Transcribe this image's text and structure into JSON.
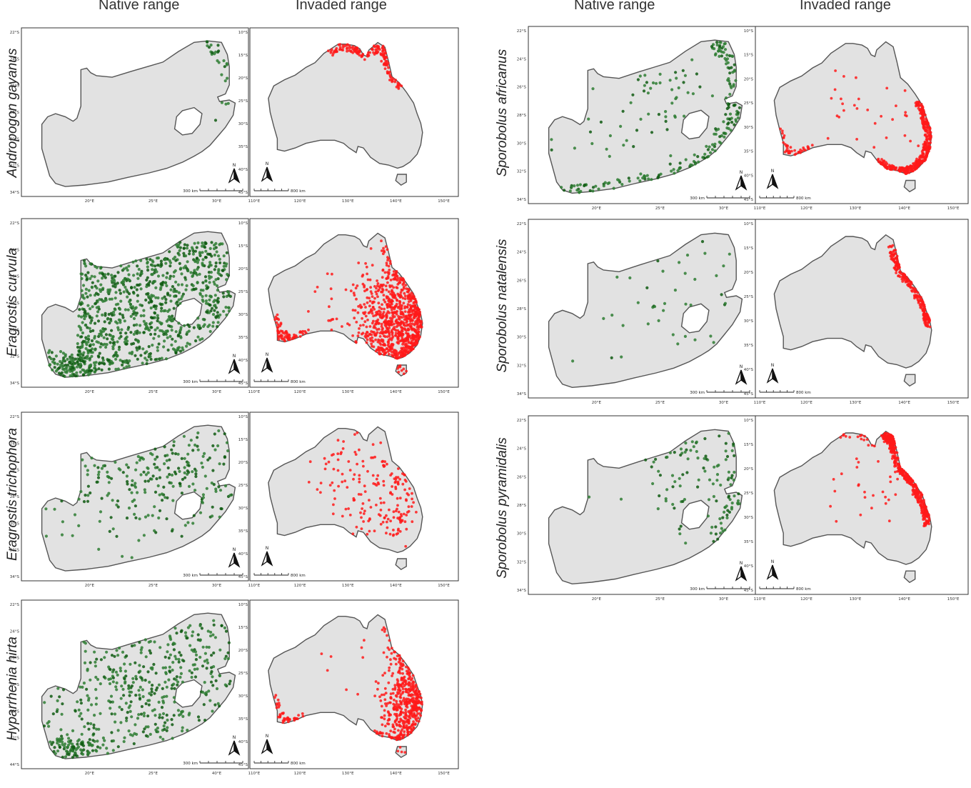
{
  "headers": {
    "left_native": "Native range",
    "left_invaded": "Invaded range",
    "right_native": "Native range",
    "right_invaded": "Invaded range"
  },
  "colors": {
    "land": "#e2e2e2",
    "coast": "#555555",
    "native_points": "#2e7d32",
    "native_points_dark": "#0f5a12",
    "invaded_points": "#ff1a1a"
  },
  "scalebars": {
    "south_africa": "300 km",
    "australia": "800 km"
  },
  "north_arrow_label": "N",
  "axes": {
    "sa_lat": [
      "22°S",
      "24°S",
      "26°S",
      "28°S",
      "30°S",
      "32°S",
      "34°S"
    ],
    "sa_lon": [
      "20°E",
      "25°E",
      "30°E"
    ],
    "au_lat": [
      "10°S",
      "15°S",
      "20°S",
      "25°S",
      "30°S",
      "35°S",
      "40°S",
      "45°S"
    ],
    "au_lon": [
      "110°E",
      "120°E",
      "130°E",
      "140°E",
      "150°E"
    ],
    "hh_sa_lat": [
      "22°S",
      "24°S",
      "26°S",
      "28°S",
      "40°S",
      "42°S",
      "44°S"
    ],
    "hh_sa_lon": [
      "20°E",
      "25°E",
      "40°E"
    ]
  },
  "species": [
    {
      "name": "Andropogon gayanus",
      "native_density": "sparse-northeast",
      "invaded_pattern": "north"
    },
    {
      "name": "Eragrostis curvula",
      "native_density": "very-dense",
      "invaded_pattern": "south-east-dense"
    },
    {
      "name": "Eragrostis trichophora",
      "native_density": "moderate-north",
      "invaded_pattern": "interior"
    },
    {
      "name": "Hyparrhenia hirta",
      "native_density": "dense",
      "invaded_pattern": "east-coast"
    },
    {
      "name": "Sporobolus africanus",
      "native_density": "moderate-coastal",
      "invaded_pattern": "south-east-coast"
    },
    {
      "name": "Sporobolus natalensis",
      "native_density": "sparse",
      "invaded_pattern": "queensland-coast"
    },
    {
      "name": "Sporobolus pyramidalis",
      "native_density": "sparse-east",
      "invaded_pattern": "northeast-coast"
    }
  ]
}
